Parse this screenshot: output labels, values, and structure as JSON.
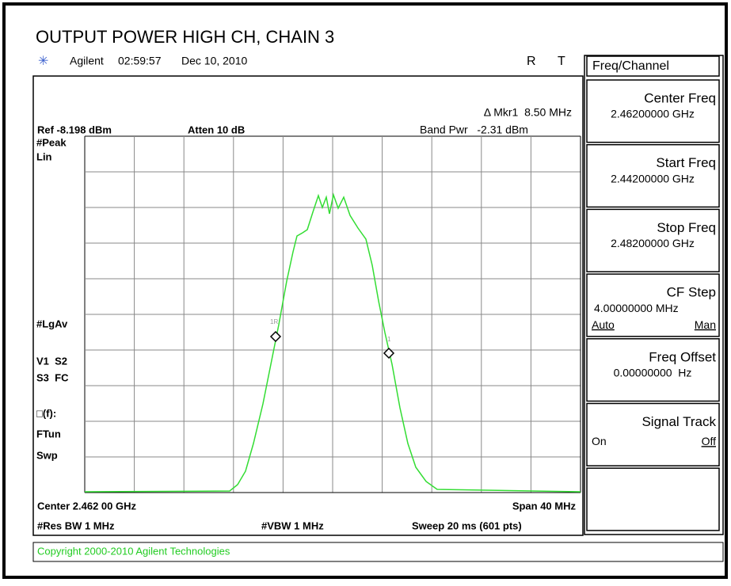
{
  "title": "OUTPUT POWER HIGH CH, CHAIN 3",
  "header": {
    "instrument": "Agilent",
    "time": "02:59:57",
    "date": "Dec 10, 2010",
    "status": [
      "R",
      "T"
    ]
  },
  "screen": {
    "marker": "Δ Mkr1  8.50 MHz",
    "ref": "Ref -8.198 dBm",
    "atten": "Atten 10 dB",
    "band_power": "Band Pwr   -2.31 dBm",
    "left_labels": [
      "#Peak",
      "Lin",
      "#LgAv",
      "V1  S2",
      "S3  FC",
      "□(f):",
      "FTun",
      "Swp"
    ],
    "marker_tags": [
      "1R",
      "1"
    ],
    "center": "Center 2.462 00 GHz",
    "span": "Span 40 MHz",
    "res_bw": "#Res BW 1 MHz",
    "vbw": "#VBW 1 MHz",
    "sweep": "Sweep 20 ms (601 pts)"
  },
  "copyright": "Copyright 2000-2010 Agilent Technologies",
  "menu": {
    "title": "Freq/Channel",
    "keys": [
      {
        "label": "Center Freq",
        "value": "2.46200000 GHz"
      },
      {
        "label": "Start Freq",
        "value": "2.44200000 GHz"
      },
      {
        "label": "Stop Freq",
        "value": "2.48200000 GHz"
      },
      {
        "label": "CF Step",
        "value": "4.00000000 MHz",
        "options": [
          "Auto",
          "Man"
        ]
      },
      {
        "label": "Freq Offset",
        "value": "0.00000000  Hz"
      },
      {
        "label": "Signal Track",
        "options": [
          "On",
          "Off"
        ]
      }
    ]
  }
}
